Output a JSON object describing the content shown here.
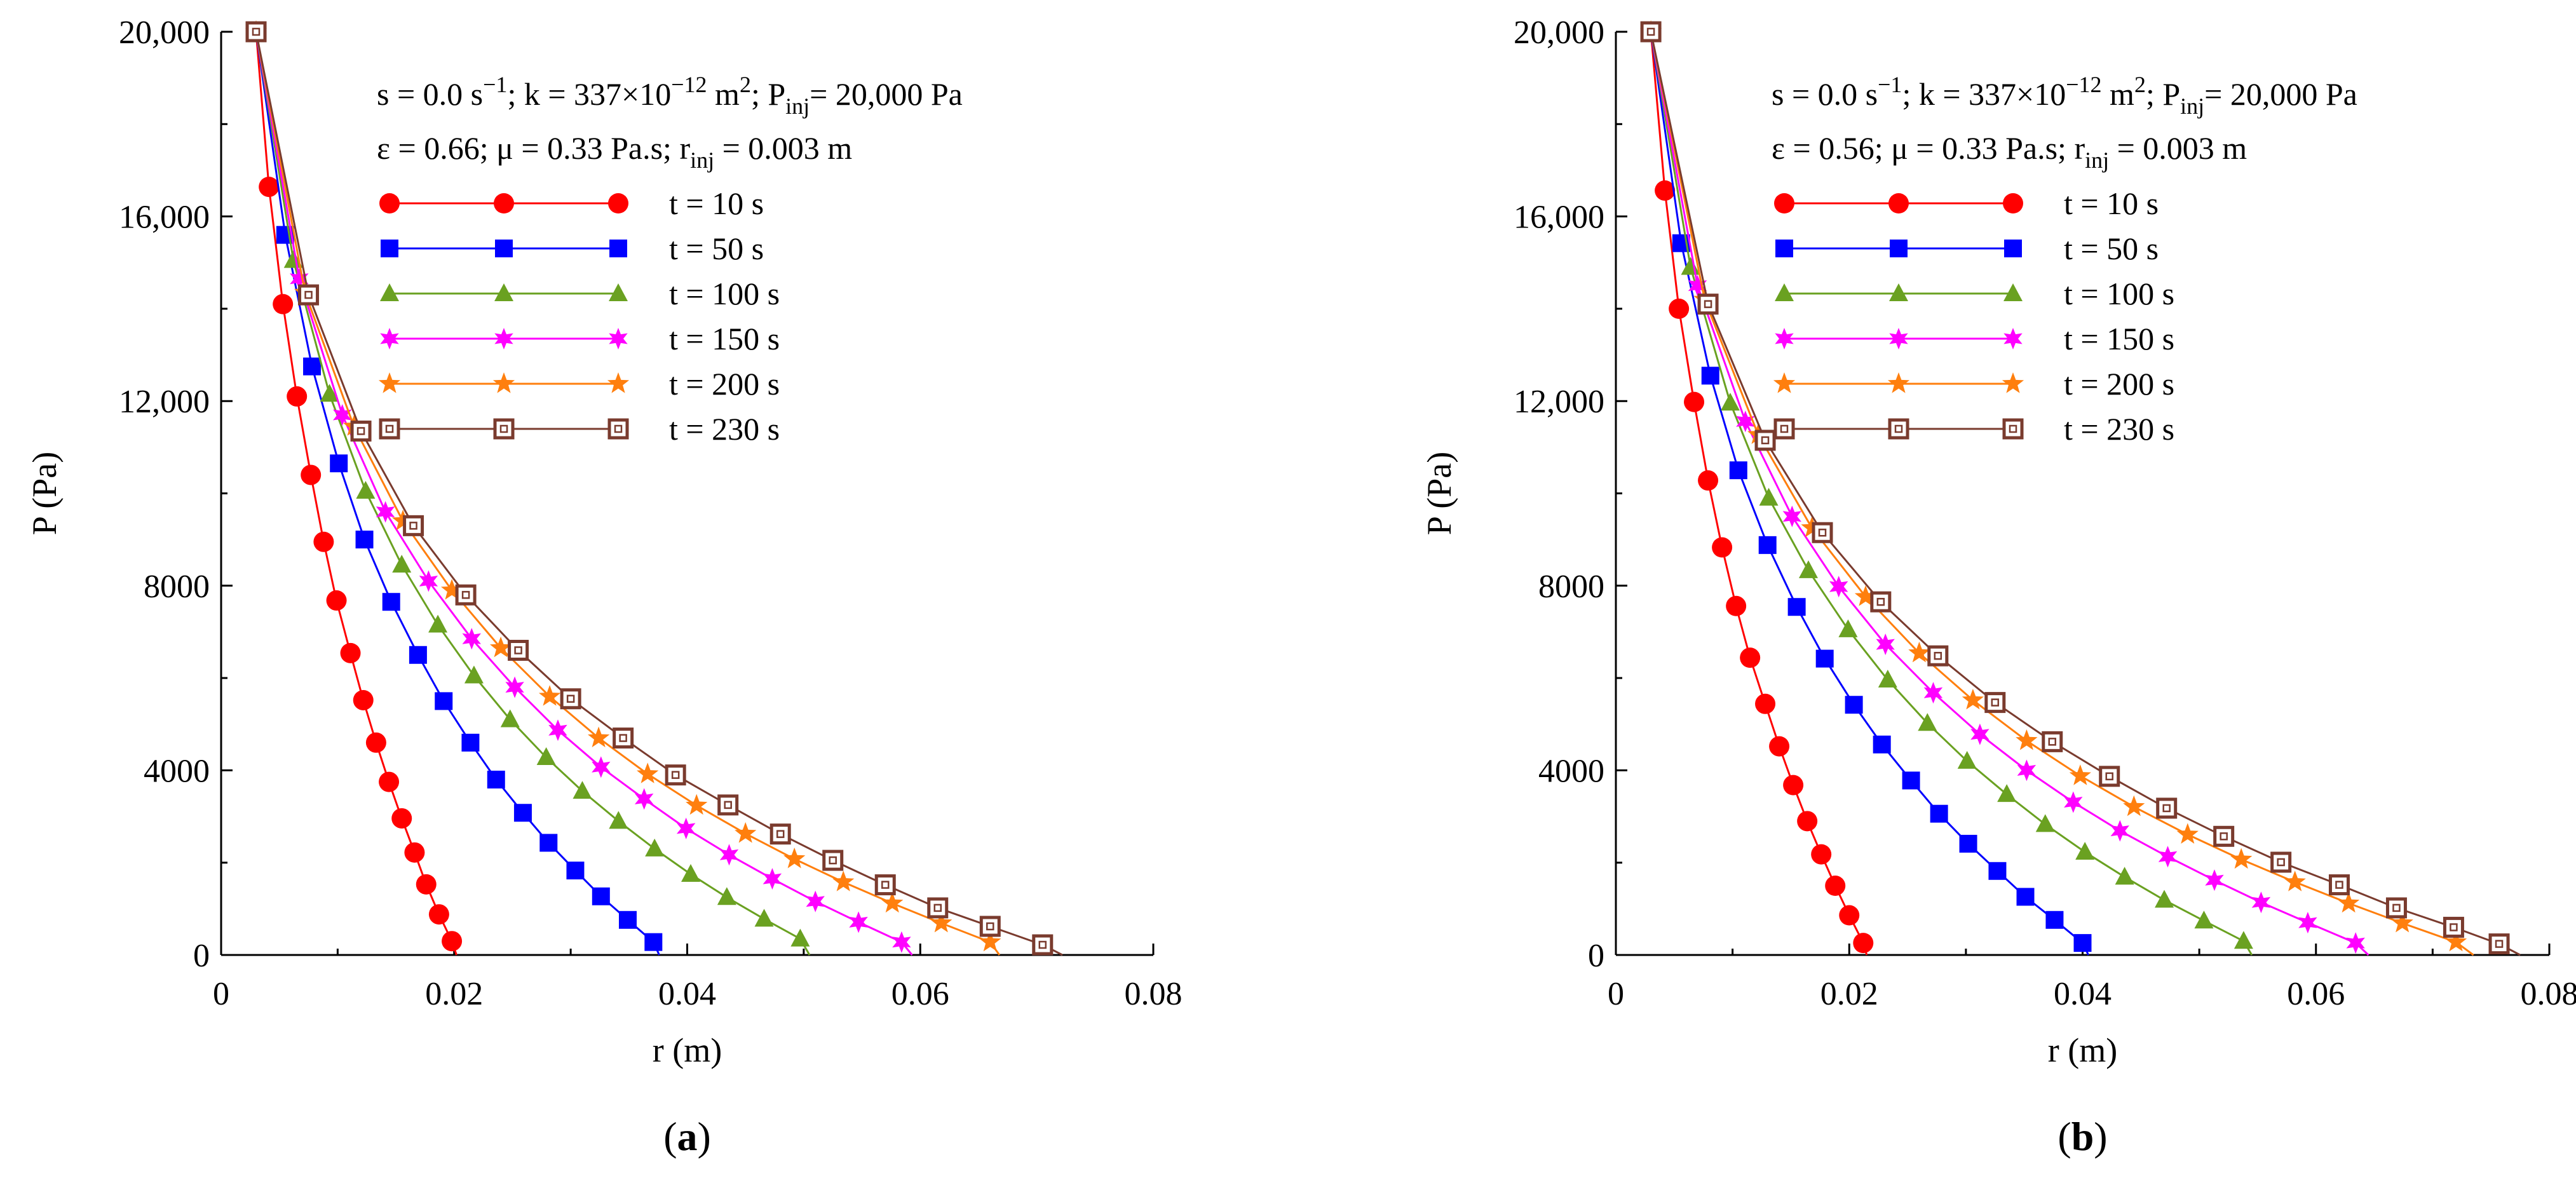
{
  "chart_data": [
    {
      "type": "line",
      "panel_label": "a",
      "title": "",
      "xlabel": "r (m)",
      "ylabel": "P (Pa)",
      "xlim": [
        0,
        0.08
      ],
      "ylim": [
        0,
        20000
      ],
      "xticks": [
        0,
        0.02,
        0.04,
        0.06,
        0.08
      ],
      "xtick_labels": [
        "0",
        "0.02",
        "0.04",
        "0.06",
        "0.08"
      ],
      "yticks": [
        0,
        4000,
        8000,
        12000,
        16000,
        20000
      ],
      "ytick_labels": [
        "0",
        "4000",
        "8000",
        "12,000",
        "16,000",
        "20,000"
      ],
      "annotation_line1": {
        "s_label": "s = 0.0 s",
        "s_sup": "−1",
        "k_label": "; k = 337×10",
        "k_sup": "−12",
        "k_unit": " m",
        "k_unit_sup": "2",
        "p_label": "; P",
        "p_sub": "inj",
        "p_value": "= 20,000 Pa"
      },
      "annotation_line2": {
        "eps_label": "ε = 0.66; μ = 0.33 Pa.s; r",
        "r_sub": "inj",
        "r_value": " = 0.003 m"
      },
      "legend_position": "upper-center",
      "series": [
        {
          "name": "t = 10 s",
          "color": "#ff0000",
          "marker": "circle",
          "r_end": 0.0202,
          "x": [
            0.003,
            0.0041,
            0.0053,
            0.0065,
            0.0077,
            0.0088,
            0.0099,
            0.0111,
            0.0122,
            0.0133,
            0.0144,
            0.0155,
            0.0166,
            0.0176,
            0.0187,
            0.0198
          ],
          "y": [
            20000,
            16640,
            14100,
            12100,
            10400,
            8950,
            7680,
            6540,
            5520,
            4600,
            3750,
            2960,
            2220,
            1530,
            880,
            300
          ]
        },
        {
          "name": "t = 50 s",
          "color": "#0000ff",
          "marker": "square",
          "r_end": 0.0376,
          "x": [
            0.003,
            0.0055,
            0.0078,
            0.0101,
            0.0123,
            0.0146,
            0.0169,
            0.0191,
            0.0214,
            0.0236,
            0.0259,
            0.0281,
            0.0304,
            0.0326,
            0.0349,
            0.0371
          ],
          "y": [
            20000,
            15600,
            12750,
            10650,
            9000,
            7650,
            6500,
            5500,
            4600,
            3800,
            3080,
            2430,
            1830,
            1270,
            760,
            280
          ]
        },
        {
          "name": "t = 100 s",
          "color": "#6aa121",
          "marker": "triangle",
          "r_end": 0.0505,
          "x": [
            0.003,
            0.0062,
            0.0093,
            0.0124,
            0.0155,
            0.0186,
            0.0217,
            0.0248,
            0.0279,
            0.031,
            0.0341,
            0.0372,
            0.0403,
            0.0434,
            0.0466,
            0.0497
          ],
          "y": [
            20000,
            15050,
            12150,
            10050,
            8450,
            7150,
            6050,
            5100,
            4280,
            3550,
            2900,
            2300,
            1750,
            1250,
            780,
            350
          ]
        },
        {
          "name": "t = 150 s",
          "color": "#ff00ff",
          "marker": "star6",
          "r_end": 0.0593,
          "x": [
            0.003,
            0.0067,
            0.0104,
            0.0141,
            0.0178,
            0.0215,
            0.0252,
            0.0289,
            0.0326,
            0.0363,
            0.0399,
            0.0436,
            0.0473,
            0.051,
            0.0547,
            0.0584
          ],
          "y": [
            20000,
            14650,
            11700,
            9600,
            8100,
            6850,
            5800,
            4870,
            4070,
            3380,
            2740,
            2170,
            1650,
            1160,
            710,
            280
          ]
        },
        {
          "name": "t = 200 s",
          "color": "#ff7f0e",
          "marker": "star5",
          "r_end": 0.0668,
          "x": [
            0.003,
            0.0072,
            0.0114,
            0.0156,
            0.0198,
            0.024,
            0.0282,
            0.0324,
            0.0366,
            0.0408,
            0.045,
            0.0492,
            0.0534,
            0.0576,
            0.0618,
            0.066
          ],
          "y": [
            20000,
            14350,
            11450,
            9400,
            7900,
            6650,
            5600,
            4700,
            3920,
            3240,
            2630,
            2080,
            1580,
            1120,
            690,
            280
          ]
        },
        {
          "name": "t = 230 s",
          "color": "#7a3b2e",
          "marker": "hollow-square",
          "r_end": 0.0722,
          "x": [
            0.003,
            0.0075,
            0.012,
            0.0165,
            0.021,
            0.0255,
            0.03,
            0.0345,
            0.039,
            0.0435,
            0.048,
            0.0525,
            0.057,
            0.0615,
            0.066,
            0.0705
          ],
          "y": [
            20000,
            14300,
            11350,
            9300,
            7800,
            6600,
            5550,
            4700,
            3900,
            3250,
            2620,
            2050,
            1520,
            1020,
            620,
            220
          ]
        }
      ]
    },
    {
      "type": "line",
      "panel_label": "b",
      "title": "",
      "xlabel": "r (m)",
      "ylabel": "P (Pa)",
      "xlim": [
        0,
        0.08
      ],
      "ylim": [
        0,
        20000
      ],
      "xticks": [
        0,
        0.02,
        0.04,
        0.06,
        0.08
      ],
      "xtick_labels": [
        "0",
        "0.02",
        "0.04",
        "0.06",
        "0.08"
      ],
      "yticks": [
        0,
        4000,
        8000,
        12000,
        16000,
        20000
      ],
      "ytick_labels": [
        "0",
        "4000",
        "8000",
        "12,000",
        "16,000",
        "20,000"
      ],
      "annotation_line1": {
        "s_label": "s = 0.0 s",
        "s_sup": "−1",
        "k_label": "; k = 337×10",
        "k_sup": "−12",
        "k_unit": " m",
        "k_unit_sup": "2",
        "p_label": "; P",
        "p_sub": "inj",
        "p_value": "= 20,000 Pa"
      },
      "annotation_line2": {
        "eps_label": "ε = 0.56; μ = 0.33 Pa.s; r",
        "r_sub": "inj",
        "r_value": " = 0.003 m"
      },
      "legend_position": "upper-center",
      "series": [
        {
          "name": "t = 10 s",
          "color": "#ff0000",
          "marker": "circle",
          "r_end": 0.0215,
          "x": [
            0.003,
            0.0042,
            0.0054,
            0.0067,
            0.0079,
            0.0091,
            0.0103,
            0.0115,
            0.0128,
            0.014,
            0.0152,
            0.0164,
            0.0176,
            0.0188,
            0.02,
            0.0212
          ],
          "y": [
            20000,
            16560,
            14000,
            11980,
            10280,
            8830,
            7560,
            6440,
            5440,
            4520,
            3680,
            2900,
            2180,
            1500,
            860,
            260
          ]
        },
        {
          "name": "t = 50 s",
          "color": "#0000ff",
          "marker": "square",
          "r_end": 0.0405,
          "x": [
            0.003,
            0.0056,
            0.0081,
            0.0105,
            0.013,
            0.0155,
            0.0179,
            0.0204,
            0.0228,
            0.0253,
            0.0277,
            0.0302,
            0.0327,
            0.0351,
            0.0376,
            0.04
          ],
          "y": [
            20000,
            15420,
            12550,
            10500,
            8880,
            7540,
            6420,
            5420,
            4560,
            3780,
            3060,
            2410,
            1820,
            1260,
            760,
            260
          ]
        },
        {
          "name": "t = 100 s",
          "color": "#6aa121",
          "marker": "triangle",
          "r_end": 0.0545,
          "x": [
            0.003,
            0.0064,
            0.0098,
            0.0131,
            0.0165,
            0.0199,
            0.0233,
            0.0267,
            0.0301,
            0.0335,
            0.0368,
            0.0402,
            0.0436,
            0.047,
            0.0504,
            0.0538
          ],
          "y": [
            20000,
            14900,
            11960,
            9900,
            8330,
            7050,
            5960,
            5020,
            4200,
            3480,
            2830,
            2230,
            1690,
            1190,
            740,
            300
          ]
        },
        {
          "name": "t = 150 s",
          "color": "#ff00ff",
          "marker": "star6",
          "r_end": 0.0645,
          "x": [
            0.003,
            0.007,
            0.0111,
            0.0151,
            0.0191,
            0.0231,
            0.0272,
            0.0312,
            0.0352,
            0.0392,
            0.0432,
            0.0473,
            0.0513,
            0.0553,
            0.0593,
            0.0634
          ],
          "y": [
            20000,
            14500,
            11560,
            9500,
            7980,
            6730,
            5680,
            4780,
            4000,
            3310,
            2690,
            2130,
            1620,
            1140,
            700,
            260
          ]
        },
        {
          "name": "t = 200 s",
          "color": "#ff7f0e",
          "marker": "star5",
          "r_end": 0.0735,
          "x": [
            0.003,
            0.0076,
            0.0122,
            0.0168,
            0.0214,
            0.026,
            0.0306,
            0.0352,
            0.0398,
            0.0444,
            0.049,
            0.0536,
            0.0582,
            0.0628,
            0.0674,
            0.072
          ],
          "y": [
            20000,
            14200,
            11270,
            9250,
            7760,
            6540,
            5520,
            4640,
            3880,
            3210,
            2610,
            2070,
            1580,
            1120,
            690,
            280
          ]
        },
        {
          "name": "t = 230 s",
          "color": "#7a3b2e",
          "marker": "hollow-square",
          "r_end": 0.0775,
          "x": [
            0.003,
            0.0079,
            0.0128,
            0.0177,
            0.0227,
            0.0276,
            0.0325,
            0.0374,
            0.0423,
            0.0472,
            0.0521,
            0.057,
            0.062,
            0.0669,
            0.0718,
            0.0757
          ],
          "y": [
            20000,
            14100,
            11150,
            9150,
            7650,
            6480,
            5470,
            4620,
            3870,
            3180,
            2570,
            2010,
            1520,
            1020,
            600,
            240
          ]
        }
      ]
    }
  ]
}
